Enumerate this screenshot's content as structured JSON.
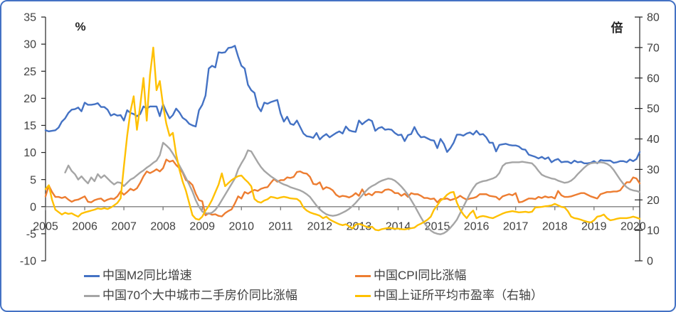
{
  "chart_data": {
    "type": "line",
    "title": "",
    "x_axis": {
      "range_start": 2005.0,
      "range_end": 2020.1667,
      "tick_labels": [
        "2005",
        "2006",
        "2007",
        "2008",
        "2009",
        "2010",
        "2011",
        "2012",
        "2013",
        "2014",
        "2015",
        "2016",
        "2017",
        "2018",
        "2019",
        "2020"
      ]
    },
    "left_axis": {
      "label": "%",
      "min": -10,
      "max": 35,
      "ticks": [
        35,
        30,
        25,
        20,
        15,
        10,
        5,
        0,
        -5,
        -10
      ]
    },
    "right_axis": {
      "label": "倍",
      "min": 0,
      "max": 80,
      "ticks": [
        80,
        70,
        60,
        50,
        40,
        30,
        20,
        10,
        0
      ]
    },
    "colors": {
      "border": "#4472C4",
      "axis_line": "#262626",
      "zero_line": "#808080",
      "text": "#404040",
      "background": "#FFFFFF"
    },
    "legend": {
      "position": "bottom",
      "rows": [
        [
          "m2",
          "cpi"
        ],
        [
          "housing",
          "pe"
        ]
      ]
    },
    "series": [
      {
        "key": "m2",
        "name": "中国M2同比增速",
        "color": "#4472C4",
        "axis": "left",
        "start": 2005.0,
        "interval_months": 1,
        "values": [
          14.1,
          13.9,
          14.0,
          14.1,
          14.6,
          15.7,
          16.3,
          17.3,
          17.9,
          18.0,
          18.3,
          17.6,
          19.2,
          18.8,
          18.8,
          18.9,
          19.1,
          18.4,
          18.4,
          17.9,
          16.8,
          17.1,
          16.8,
          16.9,
          15.9,
          17.8,
          17.3,
          17.1,
          16.7,
          17.1,
          18.5,
          18.1,
          18.5,
          18.5,
          18.5,
          16.7,
          18.9,
          17.5,
          16.3,
          16.9,
          18.1,
          17.4,
          16.4,
          16.0,
          15.3,
          15.0,
          14.8,
          17.8,
          18.8,
          20.5,
          25.5,
          26.0,
          25.7,
          28.5,
          28.4,
          28.5,
          29.3,
          29.4,
          29.7,
          27.7,
          26.0,
          25.5,
          22.5,
          21.5,
          21.0,
          18.5,
          17.6,
          19.2,
          19.0,
          19.3,
          19.5,
          19.7,
          17.2,
          15.7,
          16.6,
          15.3,
          15.1,
          15.9,
          14.7,
          13.5,
          13.0,
          12.9,
          12.7,
          13.6,
          12.4,
          13.0,
          13.4,
          12.8,
          13.2,
          13.6,
          13.9,
          13.5,
          14.8,
          14.1,
          13.9,
          13.8,
          15.9,
          15.2,
          15.7,
          16.1,
          15.8,
          14.0,
          14.5,
          14.7,
          14.2,
          14.3,
          14.2,
          13.6,
          13.2,
          13.3,
          12.1,
          13.2,
          13.4,
          14.7,
          13.5,
          12.8,
          12.9,
          12.6,
          12.3,
          12.2,
          10.8,
          12.5,
          11.6,
          10.1,
          10.8,
          11.8,
          13.3,
          13.3,
          13.1,
          13.5,
          13.7,
          13.3,
          14.0,
          13.3,
          13.4,
          12.8,
          11.8,
          11.8,
          10.2,
          11.4,
          11.5,
          11.6,
          11.4,
          11.3,
          11.3,
          11.1,
          10.6,
          10.5,
          9.6,
          9.4,
          9.2,
          8.9,
          9.2,
          8.8,
          9.1,
          8.2,
          8.6,
          8.8,
          8.2,
          8.3,
          8.3,
          8.0,
          8.5,
          8.2,
          8.3,
          8.0,
          8.0,
          8.1,
          8.4,
          8.0,
          8.6,
          8.5,
          8.5,
          8.5,
          8.1,
          8.2,
          8.4,
          8.4,
          8.2,
          8.7,
          8.4,
          8.8,
          10.1
        ]
      },
      {
        "key": "cpi",
        "name": "中国CPI同比涨幅",
        "color": "#ED7D31",
        "axis": "left",
        "start": 2005.0,
        "interval_months": 1,
        "values": [
          1.9,
          3.9,
          2.7,
          1.8,
          1.8,
          1.6,
          1.8,
          1.3,
          0.9,
          1.2,
          1.3,
          1.6,
          1.9,
          0.9,
          0.8,
          1.2,
          1.4,
          1.5,
          1.0,
          1.3,
          1.5,
          1.4,
          1.9,
          2.8,
          2.2,
          2.7,
          3.3,
          3.0,
          3.4,
          4.4,
          5.6,
          6.5,
          6.2,
          6.5,
          6.9,
          6.5,
          7.1,
          8.7,
          8.3,
          8.5,
          7.7,
          7.1,
          6.3,
          4.9,
          4.6,
          4.0,
          2.4,
          1.2,
          1.0,
          -1.6,
          -1.2,
          -1.5,
          -1.4,
          -1.7,
          -1.8,
          -1.2,
          -0.8,
          -0.5,
          0.6,
          1.9,
          1.5,
          2.7,
          2.4,
          2.8,
          3.1,
          2.9,
          3.3,
          3.5,
          3.6,
          4.4,
          5.1,
          4.6,
          4.9,
          4.9,
          5.4,
          5.3,
          5.5,
          6.4,
          6.5,
          6.2,
          6.1,
          5.5,
          4.2,
          4.1,
          4.5,
          3.2,
          3.6,
          3.4,
          3.0,
          2.2,
          1.8,
          2.0,
          1.9,
          1.7,
          2.0,
          2.5,
          2.0,
          3.2,
          2.1,
          2.4,
          2.1,
          2.7,
          2.7,
          2.6,
          3.1,
          3.2,
          3.0,
          2.5,
          2.5,
          2.0,
          2.4,
          1.8,
          2.5,
          2.3,
          2.3,
          2.0,
          1.6,
          1.6,
          1.4,
          1.5,
          0.8,
          1.4,
          1.4,
          1.5,
          1.2,
          1.4,
          1.6,
          2.0,
          1.6,
          1.3,
          1.5,
          1.6,
          1.8,
          2.3,
          2.3,
          2.3,
          2.0,
          1.9,
          1.8,
          1.3,
          1.9,
          2.1,
          2.3,
          2.1,
          2.5,
          0.8,
          0.9,
          1.2,
          1.5,
          1.5,
          1.4,
          1.8,
          1.6,
          1.9,
          1.7,
          1.8,
          1.5,
          2.9,
          2.1,
          1.8,
          1.8,
          1.9,
          2.1,
          2.3,
          2.5,
          2.5,
          2.2,
          1.9,
          1.7,
          1.5,
          2.3,
          2.5,
          2.7,
          2.7,
          2.8,
          2.8,
          3.0,
          3.8,
          4.5,
          4.5,
          5.4,
          5.2,
          4.3
        ]
      },
      {
        "key": "housing",
        "name": "中国70个大中城市二手房价同比涨幅",
        "color": "#A5A5A5",
        "axis": "left",
        "start": 2005.5,
        "interval_months": 1,
        "values": [
          6.3,
          7.6,
          6.6,
          6.0,
          5.0,
          5.6,
          4.9,
          4.3,
          5.4,
          4.7,
          6.0,
          5.3,
          5.8,
          5.2,
          4.6,
          4.1,
          4.5,
          4.4,
          3.8,
          4.4,
          5.0,
          5.3,
          5.8,
          6.3,
          6.7,
          7.2,
          7.6,
          8.1,
          8.5,
          9.5,
          11.8,
          11.3,
          10.7,
          9.8,
          8.8,
          7.6,
          6.5,
          5.3,
          4.1,
          2.8,
          1.2,
          0.0,
          -0.9,
          -1.2,
          -1.3,
          -1.1,
          -0.6,
          0.2,
          1.2,
          2.2,
          3.2,
          4.2,
          5.2,
          6.9,
          8.0,
          9.0,
          10.4,
          10.2,
          9.2,
          8.2,
          7.3,
          6.6,
          6.1,
          5.6,
          5.2,
          4.8,
          4.4,
          4.1,
          3.9,
          3.6,
          3.4,
          3.2,
          3.0,
          2.7,
          2.3,
          1.8,
          1.0,
          0.2,
          -0.5,
          -1.0,
          -1.4,
          -1.6,
          -1.7,
          -1.6,
          -1.4,
          -1.1,
          -0.8,
          -0.4,
          0.1,
          0.7,
          1.4,
          2.1,
          2.8,
          3.4,
          3.8,
          4.1,
          4.5,
          4.8,
          5.0,
          5.2,
          5.1,
          4.8,
          4.3,
          3.7,
          3.0,
          2.2,
          1.2,
          0.2,
          -0.9,
          -2.0,
          -3.0,
          -3.8,
          -4.4,
          -4.8,
          -5.0,
          -5.1,
          -4.9,
          -4.5,
          -3.9,
          -3.2,
          -2.4,
          -1.2,
          0.0,
          1.2,
          2.4,
          3.4,
          4.2,
          4.5,
          4.7,
          4.8,
          5.0,
          5.2,
          5.5,
          6.2,
          7.5,
          8.0,
          8.1,
          8.2,
          8.2,
          8.2,
          8.3,
          8.2,
          8.1,
          8.0,
          7.4,
          6.6,
          5.9,
          5.6,
          5.4,
          5.2,
          5.1,
          4.8,
          4.6,
          4.4,
          4.5,
          4.8,
          5.3,
          6.0,
          6.6,
          7.2,
          7.7,
          8.0,
          8.1,
          8.1,
          8.2,
          8.1,
          7.9,
          7.5,
          6.8,
          5.9,
          5.0,
          4.2,
          3.6,
          3.2,
          3.0,
          2.9,
          2.7
        ]
      },
      {
        "key": "pe",
        "name": "中国上证所平均市盈率（右轴）",
        "color": "#FFC000",
        "axis": "right",
        "start": 2005.0,
        "interval_months": 1,
        "values": [
          23.5,
          24.8,
          20.0,
          16.8,
          16.0,
          15.2,
          15.8,
          15.4,
          15.6,
          15.0,
          14.5,
          15.5,
          15.9,
          16.2,
          16.5,
          16.8,
          17.2,
          17.0,
          17.3,
          17.0,
          17.5,
          18.2,
          19.0,
          20.5,
          31,
          41,
          49,
          54,
          43,
          51,
          60,
          46,
          61,
          70,
          56,
          59,
          51,
          45,
          41,
          42,
          35,
          30,
          26,
          23,
          19,
          15,
          13.8,
          13.5,
          14.5,
          16.5,
          18.0,
          20.0,
          22.5,
          25.0,
          28.7,
          24.5,
          25.5,
          26.5,
          27.2,
          27.8,
          28.0,
          26.8,
          25.8,
          24.5,
          20.3,
          19.4,
          19.1,
          19.8,
          20.2,
          21.0,
          20.8,
          20.5,
          20.8,
          21.0,
          20.8,
          20.5,
          20.4,
          20.3,
          19.5,
          17.5,
          16.5,
          15.9,
          15.5,
          15.2,
          14.8,
          14.0,
          14.5,
          13.6,
          13.0,
          12.5,
          12.0,
          11.7,
          12.0,
          11.3,
          10.6,
          11.9,
          12.1,
          11.8,
          11.3,
          10.9,
          11.2,
          10.2,
          10.0,
          10.4,
          10.6,
          10.8,
          10.7,
          10.5,
          10.6,
          10.4,
          10.3,
          10.5,
          10.7,
          10.9,
          11.7,
          12.2,
          12.8,
          13.5,
          14.5,
          16.8,
          18.2,
          19.8,
          20.5,
          21.7,
          22.4,
          22.6,
          19.1,
          16.8,
          15.2,
          14.0,
          15.5,
          16.5,
          14.0,
          14.5,
          14.7,
          14.5,
          14.2,
          14.0,
          14.5,
          15.0,
          15.5,
          15.9,
          16.1,
          16.3,
          16.1,
          15.9,
          16.0,
          16.1,
          15.9,
          16.1,
          17.5,
          17.6,
          17.7,
          17.9,
          18.0,
          18.2,
          18.7,
          18.2,
          17.7,
          17.5,
          16.3,
          14.5,
          14.0,
          13.8,
          13.5,
          13.1,
          12.8,
          12.6,
          13.3,
          14.5,
          14.7,
          15.2,
          14.0,
          13.3,
          13.5,
          13.8,
          14.0,
          14.0,
          14.0,
          14.2,
          14.5,
          14.2,
          13.8
        ]
      }
    ]
  }
}
